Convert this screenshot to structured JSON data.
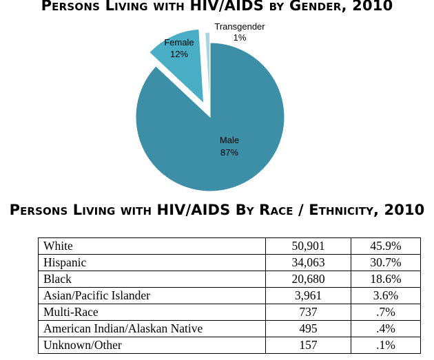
{
  "pie_title": "Persons Living with HIV/AIDS by Gender, 2010",
  "table_title": "Persons Living with HIV/AIDS By Race / Ethnicity, 2010",
  "chart_data": [
    {
      "type": "pie",
      "title": "Persons Living with HIV/AIDS by Gender, 2010",
      "slices": [
        {
          "label": "Male",
          "percent_label": "87%",
          "value": 87,
          "color": "#3d8fa8"
        },
        {
          "label": "Female",
          "percent_label": "12%",
          "value": 12,
          "color": "#4aadc6"
        },
        {
          "label": "Transgender",
          "percent_label": "1%",
          "value": 1,
          "color": "#a9d3e0"
        }
      ],
      "exploded": [
        "Female",
        "Transgender"
      ]
    },
    {
      "type": "table",
      "title": "Persons Living with HIV/AIDS By Race / Ethnicity, 2010",
      "rows": [
        {
          "label": "White",
          "count": "50,901",
          "percent": "45.9%"
        },
        {
          "label": "Hispanic",
          "count": "34,063",
          "percent": "30.7%"
        },
        {
          "label": "Black",
          "count": "20,680",
          "percent": "18.6%"
        },
        {
          "label": "Asian/Pacific Islander",
          "count": "3,961",
          "percent": "3.6%"
        },
        {
          "label": "Multi-Race",
          "count": "737",
          "percent": ".7%"
        },
        {
          "label": "American Indian/Alaskan Native",
          "count": "495",
          "percent": ".4%"
        },
        {
          "label": "Unknown/Other",
          "count": "157",
          "percent": ".1%"
        }
      ]
    }
  ]
}
